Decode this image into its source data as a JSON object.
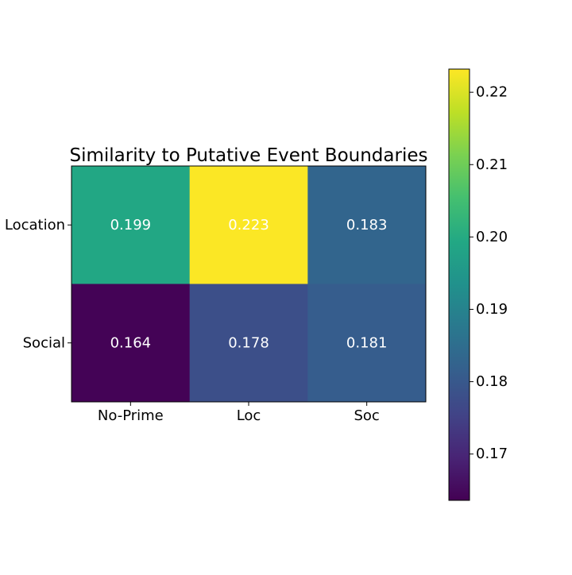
{
  "chart_data": {
    "type": "heatmap",
    "title": "Similarity to Putative Event Boundaries",
    "x_categories": [
      "No-Prime",
      "Loc",
      "Soc"
    ],
    "y_categories": [
      "Location",
      "Social"
    ],
    "values": [
      [
        0.199,
        0.223,
        0.183
      ],
      [
        0.164,
        0.178,
        0.181
      ]
    ],
    "value_labels": [
      [
        "0.199",
        "0.223",
        "0.183"
      ],
      [
        "0.164",
        "0.178",
        "0.181"
      ]
    ],
    "colormap": "viridis",
    "colorbar": {
      "range": [
        0.1636,
        0.2232
      ],
      "ticks": [
        0.17,
        0.18,
        0.19,
        0.2,
        0.21,
        0.22
      ],
      "tick_labels": [
        "0.17",
        "0.18",
        "0.19",
        "0.20",
        "0.21",
        "0.22"
      ],
      "placement": "right"
    },
    "annotation_text_color": "#ffffff",
    "grid": false
  }
}
